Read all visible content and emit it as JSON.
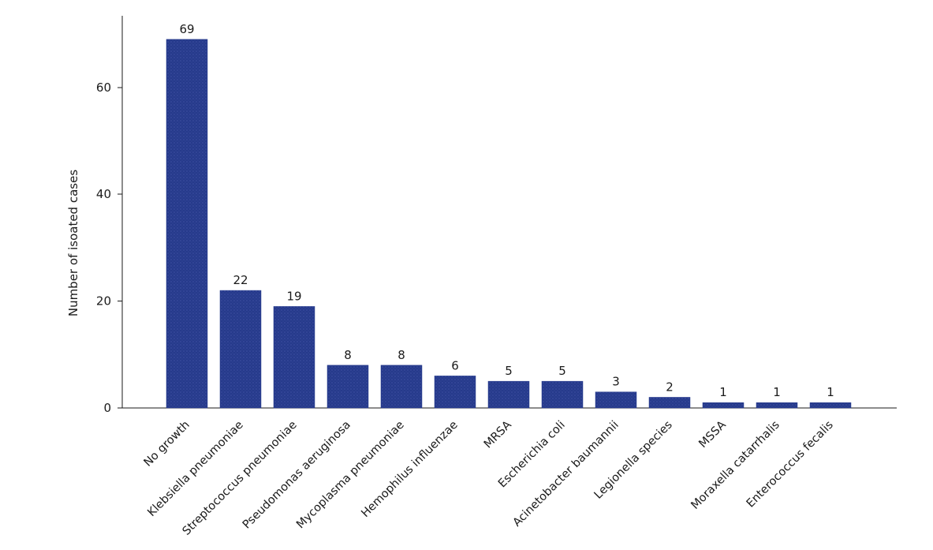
{
  "chart_data": {
    "type": "bar",
    "title": "",
    "xlabel": "",
    "ylabel": "Number of isoated cases",
    "categories": [
      "No growth",
      "Klebsiella pneumoniae",
      "Streptococcus pneumoniae",
      "Pseudomonas aeruginosa",
      "Mycoplasma pneumoniae",
      "Hemophilus influenzae",
      "MRSA",
      "Escherichia coli",
      "Acinetobacter baumannii",
      "Legionella species",
      "MSSA",
      "Moraxella catarrhalis",
      "Enterococcus fecalis"
    ],
    "values": [
      69,
      22,
      19,
      8,
      8,
      6,
      5,
      5,
      3,
      2,
      1,
      1,
      1
    ],
    "data_labels": [
      "69",
      "22",
      "19",
      "8",
      "8",
      "6",
      "5",
      "5",
      "3",
      "2",
      "1",
      "1",
      "1"
    ],
    "y_ticks": [
      0,
      20,
      40,
      60
    ],
    "ylim": [
      0,
      75
    ],
    "grid": false,
    "legend": "none",
    "colors": {
      "bar": "#263a8c",
      "axis": "#1a1a1a"
    }
  }
}
